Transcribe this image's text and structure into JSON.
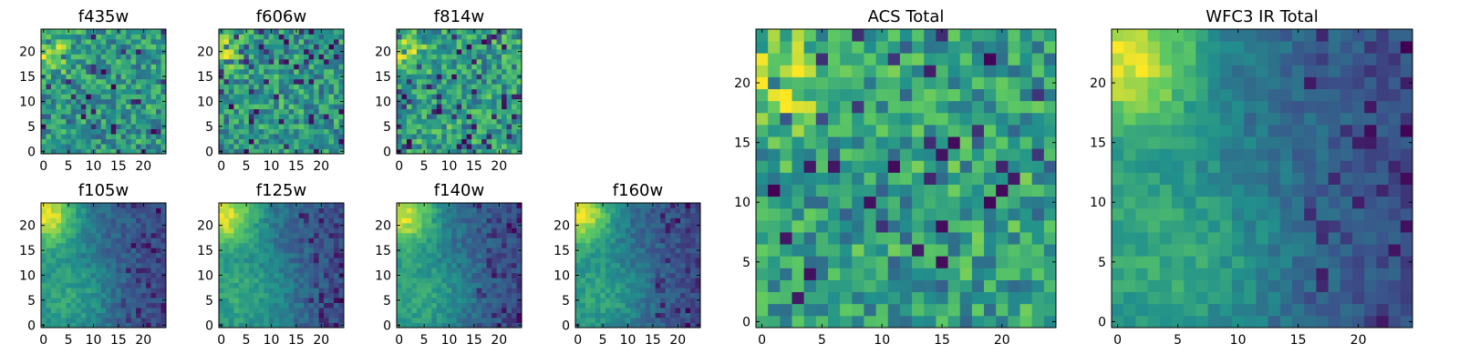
{
  "figure": {
    "colormap": "viridis",
    "colors": [
      "#440154",
      "#3b528b",
      "#21918c",
      "#5ec962",
      "#fde725"
    ],
    "background": "#ffffff"
  },
  "chart_data": [
    {
      "type": "heatmap",
      "title": "f435w",
      "grid": [
        25,
        25
      ],
      "pattern": "noise",
      "seed": 11,
      "xlim": [
        0,
        25
      ],
      "ylim": [
        0,
        25
      ],
      "xticks": [
        0,
        5,
        10,
        15,
        20
      ],
      "yticks": [
        0,
        5,
        10,
        15,
        20
      ]
    },
    {
      "type": "heatmap",
      "title": "f606w",
      "grid": [
        25,
        25
      ],
      "pattern": "noise",
      "seed": 23,
      "xlim": [
        0,
        25
      ],
      "ylim": [
        0,
        25
      ],
      "xticks": [
        0,
        5,
        10,
        15,
        20
      ],
      "yticks": [
        0,
        5,
        10,
        15,
        20
      ]
    },
    {
      "type": "heatmap",
      "title": "f814w",
      "grid": [
        25,
        25
      ],
      "pattern": "noise",
      "seed": 37,
      "xlim": [
        0,
        25
      ],
      "ylim": [
        0,
        25
      ],
      "xticks": [
        0,
        5,
        10,
        15,
        20
      ],
      "yticks": [
        0,
        5,
        10,
        15,
        20
      ]
    },
    {
      "type": "heatmap",
      "title": "f105w",
      "grid": [
        25,
        25
      ],
      "pattern": "ir",
      "seed": 41,
      "xlim": [
        0,
        25
      ],
      "ylim": [
        0,
        25
      ],
      "xticks": [
        0,
        5,
        10,
        15,
        20
      ],
      "yticks": [
        0,
        5,
        10,
        15,
        20
      ]
    },
    {
      "type": "heatmap",
      "title": "f125w",
      "grid": [
        25,
        25
      ],
      "pattern": "ir",
      "seed": 53,
      "xlim": [
        0,
        25
      ],
      "ylim": [
        0,
        25
      ],
      "xticks": [
        0,
        5,
        10,
        15,
        20
      ],
      "yticks": [
        0,
        5,
        10,
        15,
        20
      ]
    },
    {
      "type": "heatmap",
      "title": "f140w",
      "grid": [
        25,
        25
      ],
      "pattern": "ir",
      "seed": 67,
      "xlim": [
        0,
        25
      ],
      "ylim": [
        0,
        25
      ],
      "xticks": [
        0,
        5,
        10,
        15,
        20
      ],
      "yticks": [
        0,
        5,
        10,
        15,
        20
      ]
    },
    {
      "type": "heatmap",
      "title": "f160w",
      "grid": [
        25,
        25
      ],
      "pattern": "ir",
      "seed": 79,
      "xlim": [
        0,
        25
      ],
      "ylim": [
        0,
        25
      ],
      "xticks": [
        0,
        5,
        10,
        15,
        20
      ],
      "yticks": [
        0,
        5,
        10,
        15,
        20
      ]
    },
    {
      "type": "heatmap",
      "title": "ACS Total",
      "grid": [
        25,
        25
      ],
      "pattern": "noise",
      "seed": 83,
      "xlim": [
        0,
        25
      ],
      "ylim": [
        0,
        25
      ],
      "xticks": [
        0,
        5,
        10,
        15,
        20
      ],
      "yticks": [
        0,
        5,
        10,
        15,
        20
      ]
    },
    {
      "type": "heatmap",
      "title": "WFC3 IR Total",
      "grid": [
        25,
        25
      ],
      "pattern": "ir",
      "seed": 97,
      "xlim": [
        0,
        25
      ],
      "ylim": [
        0,
        25
      ],
      "xticks": [
        0,
        5,
        10,
        15,
        20
      ],
      "yticks": [
        0,
        5,
        10,
        15,
        20
      ]
    }
  ]
}
